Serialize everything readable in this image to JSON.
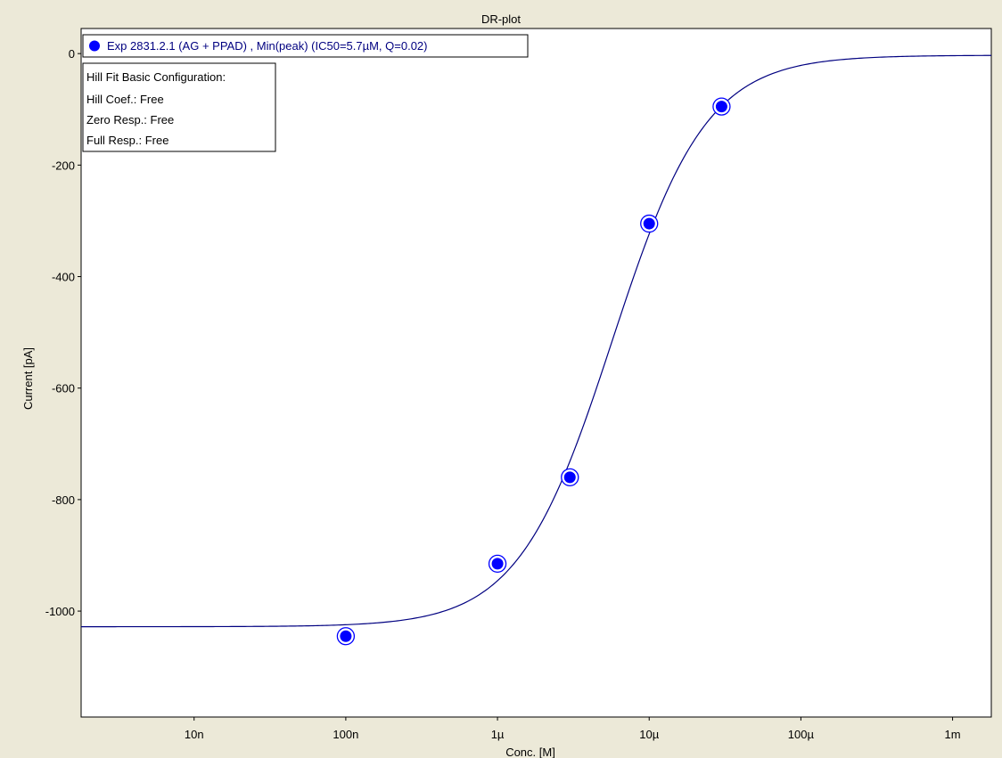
{
  "chart_data": {
    "type": "scatter",
    "title": "DR-plot",
    "xlabel": "Conc. [M]",
    "ylabel": "Current [pA]",
    "xscale": "log",
    "xlim": [
      1.8e-09,
      0.0018
    ],
    "ylim": [
      -1190,
      45
    ],
    "x_ticks": [
      {
        "value": 1e-08,
        "label": "10n"
      },
      {
        "value": 1e-07,
        "label": "100n"
      },
      {
        "value": 1e-06,
        "label": "1µ"
      },
      {
        "value": 1e-05,
        "label": "10µ"
      },
      {
        "value": 0.0001,
        "label": "100µ"
      },
      {
        "value": 0.001,
        "label": "1m"
      }
    ],
    "y_ticks": [
      {
        "value": 0,
        "label": "0"
      },
      {
        "value": -200,
        "label": "-200"
      },
      {
        "value": -400,
        "label": "-400"
      },
      {
        "value": -600,
        "label": "-600"
      },
      {
        "value": -800,
        "label": "-800"
      },
      {
        "value": -1000,
        "label": "-1000"
      }
    ],
    "grid": false,
    "legend_position": "top-left",
    "series": [
      {
        "name": "Exp 2831.2.1 (AG + PPAD) , Min(peak) (IC50=5.7µM, Q=0.02)",
        "color": "#0000ff",
        "x": [
          1e-07,
          1e-06,
          3e-06,
          1e-05,
          3e-05
        ],
        "y": [
          -1045,
          -915,
          -760,
          -305,
          -95
        ]
      }
    ],
    "fit": {
      "type": "hill",
      "ic50": 5.7e-06,
      "bottom": -1028,
      "top": -3,
      "hill_coef": 1.4,
      "color": "#000080"
    },
    "annotation": {
      "lines": [
        "Hill Fit Basic Configuration:",
        "Hill Coef.: Free",
        "Zero Resp.: Free",
        "Full Resp.: Free"
      ]
    }
  }
}
